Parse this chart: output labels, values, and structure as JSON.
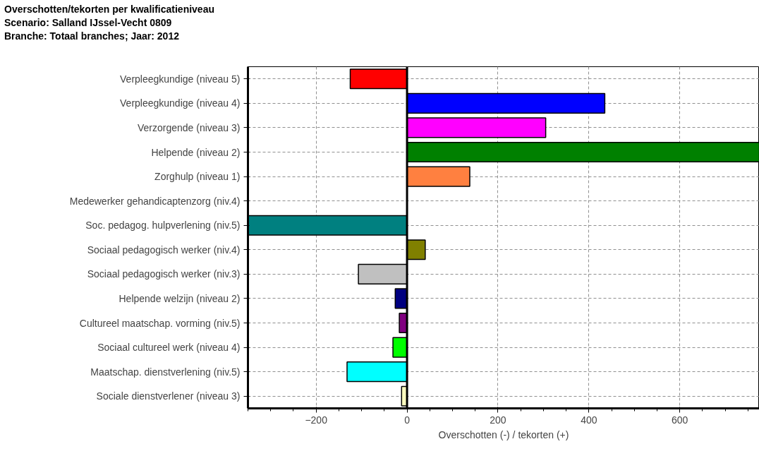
{
  "chart_data": {
    "type": "bar",
    "orientation": "horizontal",
    "title": "Overschotten/tekorten per kwalificatieniveau",
    "subtitle": "Scenario: Salland IJssel-Vecht 0809\nBranche: Totaal branches; Jaar: 2012",
    "xlabel": "Overschotten (-) / tekorten (+)",
    "categories": [
      "Verpleegkundige (niveau 5)",
      "Verpleegkundige (niveau 4)",
      "Verzorgende (niveau 3)",
      "Helpende (niveau 2)",
      "Zorghulp (niveau 1)",
      "Medewerker gehandicaptenzorg (niv.4)",
      "Soc. pedagog. hulpverlening (niv.5)",
      "Sociaal pedagogisch werker (niv.4)",
      "Sociaal pedagogisch werker (niv.3)",
      "Helpende welzijn (niveau 2)",
      "Cultureel maatschap. vorming (niv.5)",
      "Sociaal cultureel werk (niveau 4)",
      "Maatschap. dienstverlening (niv.5)",
      "Sociale dienstverlener (niveau 3)"
    ],
    "values": [
      -125,
      435,
      305,
      775,
      138,
      null,
      -350,
      40,
      -107,
      -26,
      -17,
      -31,
      -132,
      -12
    ],
    "colors": [
      "#ff0000",
      "#0000ff",
      "#ff00ff",
      "#008000",
      "#ff8040",
      "#ff0000",
      "#008080",
      "#808000",
      "#c0c0c0",
      "#000080",
      "#800080",
      "#00ff00",
      "#00ffff",
      "#ffffc0"
    ],
    "xlim": [
      -350,
      775
    ],
    "xticks": [
      -200,
      0,
      200,
      400,
      600
    ],
    "grid": true,
    "ref_lines": [
      {
        "axis": "x",
        "value": 0,
        "color": "#000000"
      }
    ]
  }
}
